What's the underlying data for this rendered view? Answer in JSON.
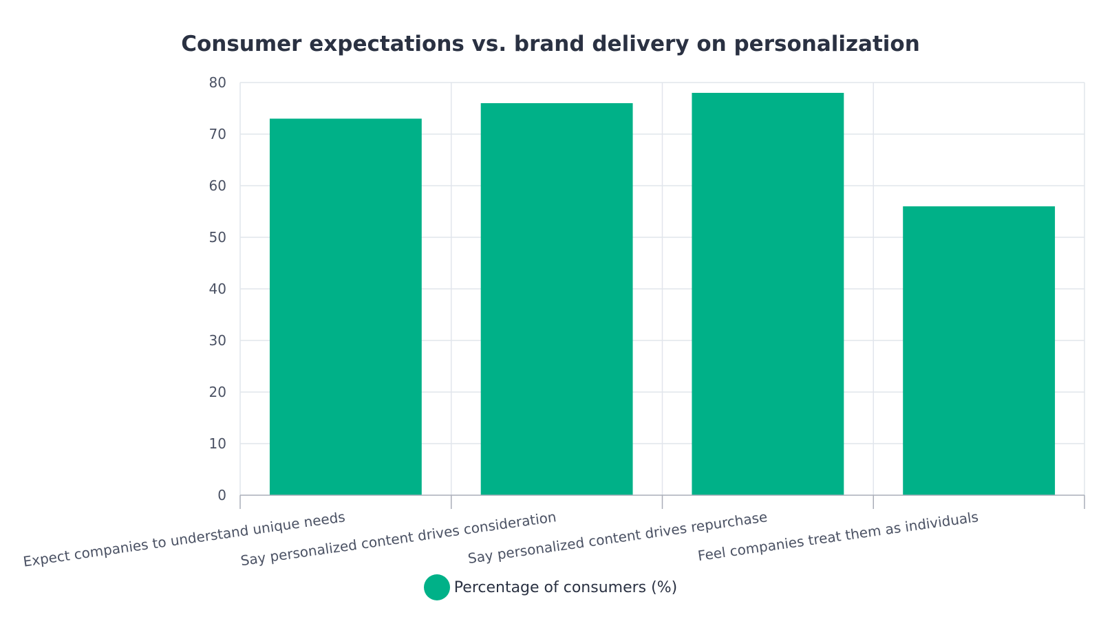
{
  "chart_data": {
    "type": "bar",
    "title": "Consumer expectations vs. brand delivery on personalization",
    "categories": [
      "Expect companies to understand unique needs",
      "Say personalized content drives consideration",
      "Say personalized content drives repurchase",
      "Feel companies treat them as individuals"
    ],
    "series": [
      {
        "name": "Percentage of consumers (%)",
        "values": [
          73,
          76,
          78,
          56
        ],
        "color": "#00b188"
      }
    ],
    "xlabel": "",
    "ylabel": "",
    "ylim": [
      0,
      80
    ],
    "yticks": [
      0,
      10,
      20,
      30,
      40,
      50,
      60,
      70,
      80
    ],
    "grid": true,
    "legend": "bottom-center"
  }
}
